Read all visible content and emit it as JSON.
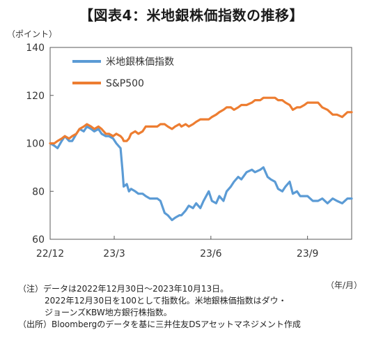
{
  "title": "【図表4：米地銀株価指数の推移】",
  "y_unit": "（ポイント）",
  "x_unit": "（年/月）",
  "notes": [
    "（注）データは2022年12月30日～2023年10月13日。",
    "2022年12月30日を100として指数化。米地銀株価指数はダウ・",
    "ジョーンズKBW地方銀行株指数。",
    "（出所）Bloombergのデータを基に三井住友DSアセットマネジメント作成"
  ],
  "chart_data": {
    "type": "line",
    "title": "【図表4：米地銀株価指数の推移】",
    "ylabel": "（ポイント）",
    "xlabel": "（年/月）",
    "ylim": [
      60,
      140
    ],
    "yticks": [
      60,
      80,
      100,
      120,
      140
    ],
    "xticks": [
      {
        "label": "22/12",
        "x": "2022-12-30"
      },
      {
        "label": "23/3",
        "x": "2023-03-01"
      },
      {
        "label": "23/6",
        "x": "2023-06-01"
      },
      {
        "label": "23/9",
        "x": "2023-09-01"
      }
    ],
    "xlim": [
      "2022-12-30",
      "2023-10-13"
    ],
    "grid": false,
    "legend": "top-left",
    "series": [
      {
        "name": "米地銀株価指数",
        "color": "#5b9bd5",
        "x": [
          "2022-12-30",
          "2023-01-03",
          "2023-01-06",
          "2023-01-10",
          "2023-01-13",
          "2023-01-17",
          "2023-01-20",
          "2023-01-24",
          "2023-01-27",
          "2023-01-31",
          "2023-02-03",
          "2023-02-07",
          "2023-02-10",
          "2023-02-14",
          "2023-02-17",
          "2023-02-21",
          "2023-02-24",
          "2023-02-28",
          "2023-03-03",
          "2023-03-07",
          "2023-03-09",
          "2023-03-10",
          "2023-03-13",
          "2023-03-15",
          "2023-03-17",
          "2023-03-21",
          "2023-03-24",
          "2023-03-28",
          "2023-03-31",
          "2023-04-04",
          "2023-04-07",
          "2023-04-11",
          "2023-04-14",
          "2023-04-18",
          "2023-04-21",
          "2023-04-25",
          "2023-04-28",
          "2023-05-02",
          "2023-05-04",
          "2023-05-08",
          "2023-05-11",
          "2023-05-15",
          "2023-05-18",
          "2023-05-22",
          "2023-05-25",
          "2023-05-30",
          "2023-06-02",
          "2023-06-06",
          "2023-06-09",
          "2023-06-13",
          "2023-06-16",
          "2023-06-20",
          "2023-06-23",
          "2023-06-27",
          "2023-06-30",
          "2023-07-05",
          "2023-07-10",
          "2023-07-13",
          "2023-07-18",
          "2023-07-21",
          "2023-07-25",
          "2023-07-28",
          "2023-08-01",
          "2023-08-04",
          "2023-08-08",
          "2023-08-11",
          "2023-08-15",
          "2023-08-18",
          "2023-08-22",
          "2023-08-25",
          "2023-08-29",
          "2023-09-01",
          "2023-09-06",
          "2023-09-11",
          "2023-09-15",
          "2023-09-20",
          "2023-09-25",
          "2023-09-29",
          "2023-10-04",
          "2023-10-09",
          "2023-10-13"
        ],
        "values": [
          100,
          99,
          98,
          101,
          103,
          101,
          101,
          104,
          106,
          105,
          107,
          106,
          105,
          106,
          104,
          103,
          103,
          102,
          100,
          98,
          88,
          82,
          83,
          80,
          81,
          80,
          79,
          79,
          78,
          77,
          77,
          77,
          76,
          71,
          70,
          68,
          69,
          70,
          70,
          72,
          74,
          73,
          75,
          73,
          76,
          80,
          76,
          75,
          78,
          76,
          80,
          82,
          84,
          86,
          85,
          88,
          89,
          88,
          89,
          90,
          86,
          85,
          84,
          81,
          80,
          82,
          84,
          79,
          80,
          78,
          78,
          78,
          76,
          76,
          77,
          75,
          77,
          76,
          75,
          77,
          77
        ]
      },
      {
        "name": "S&P500",
        "color": "#ed7d31",
        "x": [
          "2022-12-30",
          "2023-01-03",
          "2023-01-06",
          "2023-01-10",
          "2023-01-13",
          "2023-01-17",
          "2023-01-20",
          "2023-01-24",
          "2023-01-27",
          "2023-01-31",
          "2023-02-03",
          "2023-02-07",
          "2023-02-10",
          "2023-02-14",
          "2023-02-17",
          "2023-02-21",
          "2023-02-24",
          "2023-02-28",
          "2023-03-03",
          "2023-03-07",
          "2023-03-09",
          "2023-03-10",
          "2023-03-13",
          "2023-03-15",
          "2023-03-17",
          "2023-03-21",
          "2023-03-24",
          "2023-03-28",
          "2023-03-31",
          "2023-04-04",
          "2023-04-07",
          "2023-04-11",
          "2023-04-14",
          "2023-04-18",
          "2023-04-21",
          "2023-04-25",
          "2023-04-28",
          "2023-05-02",
          "2023-05-04",
          "2023-05-08",
          "2023-05-11",
          "2023-05-15",
          "2023-05-18",
          "2023-05-22",
          "2023-05-25",
          "2023-05-30",
          "2023-06-02",
          "2023-06-06",
          "2023-06-09",
          "2023-06-13",
          "2023-06-16",
          "2023-06-20",
          "2023-06-23",
          "2023-06-27",
          "2023-06-30",
          "2023-07-05",
          "2023-07-10",
          "2023-07-13",
          "2023-07-18",
          "2023-07-21",
          "2023-07-25",
          "2023-07-28",
          "2023-08-01",
          "2023-08-04",
          "2023-08-08",
          "2023-08-11",
          "2023-08-15",
          "2023-08-18",
          "2023-08-22",
          "2023-08-25",
          "2023-08-29",
          "2023-09-01",
          "2023-09-06",
          "2023-09-11",
          "2023-09-15",
          "2023-09-20",
          "2023-09-25",
          "2023-09-29",
          "2023-10-04",
          "2023-10-09",
          "2023-10-13"
        ],
        "values": [
          100,
          100,
          101,
          102,
          103,
          102,
          103,
          104,
          106,
          107,
          108,
          107,
          106,
          107,
          106,
          104,
          104,
          103,
          104,
          103,
          102,
          101,
          101,
          102,
          104,
          105,
          104,
          105,
          107,
          107,
          107,
          107,
          108,
          108,
          107,
          106,
          107,
          108,
          107,
          108,
          107,
          108,
          109,
          110,
          110,
          110,
          111,
          112,
          113,
          114,
          115,
          115,
          114,
          115,
          116,
          116,
          117,
          118,
          118,
          119,
          119,
          119,
          119,
          118,
          118,
          117,
          116,
          114,
          115,
          115,
          116,
          117,
          117,
          117,
          115,
          114,
          112,
          112,
          111,
          113,
          113
        ]
      }
    ]
  }
}
